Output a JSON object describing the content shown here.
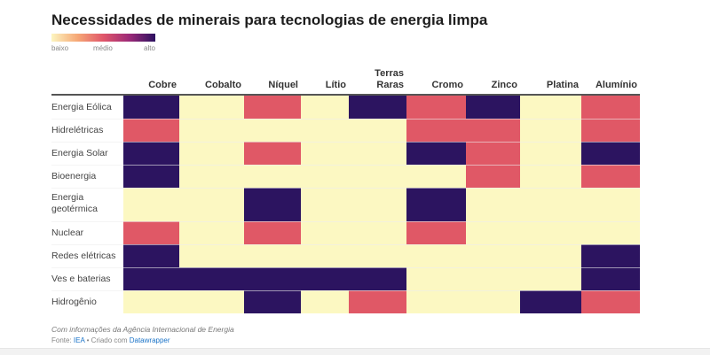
{
  "chart_data": {
    "type": "heatmap",
    "title": "Necessidades de minerais para tecnologias de energia limpa",
    "legend": {
      "labels": [
        "baixo",
        "médio",
        "alto"
      ],
      "colors": [
        "#fcf8c2",
        "#e05866",
        "#2c1460"
      ],
      "placement": "top-left"
    },
    "columns": [
      "Cobre",
      "Cobalto",
      "Níquel",
      "Lítio",
      "Terras Raras",
      "Cromo",
      "Zinco",
      "Platina",
      "Alumínio"
    ],
    "rows": [
      "Energia Eólica",
      "Hidrelétricas",
      "Energia Solar",
      "Bioenergia",
      "Energia geotérmica",
      "Nuclear",
      "Redes elétricas",
      "Ves e baterias",
      "Hidrogênio"
    ],
    "level_names": [
      "baixo",
      "médio",
      "alto"
    ],
    "values": [
      [
        2,
        0,
        1,
        0,
        2,
        1,
        2,
        0,
        1
      ],
      [
        1,
        0,
        0,
        0,
        0,
        1,
        1,
        0,
        1
      ],
      [
        2,
        0,
        1,
        0,
        0,
        2,
        1,
        0,
        2
      ],
      [
        2,
        0,
        0,
        0,
        0,
        0,
        1,
        0,
        1
      ],
      [
        0,
        0,
        2,
        0,
        0,
        2,
        0,
        0,
        0
      ],
      [
        1,
        0,
        1,
        0,
        0,
        1,
        0,
        0,
        0
      ],
      [
        2,
        0,
        0,
        0,
        0,
        0,
        0,
        0,
        2
      ],
      [
        2,
        2,
        2,
        2,
        2,
        0,
        0,
        0,
        2
      ],
      [
        0,
        0,
        2,
        0,
        1,
        0,
        0,
        2,
        1
      ]
    ]
  },
  "footer": {
    "note": "Com informações da Agência Internacional de Energia",
    "source_prefix": "Fonte: ",
    "source_link": "IEA",
    "separator": " • Criado com ",
    "tool_link": "Datawrapper"
  }
}
